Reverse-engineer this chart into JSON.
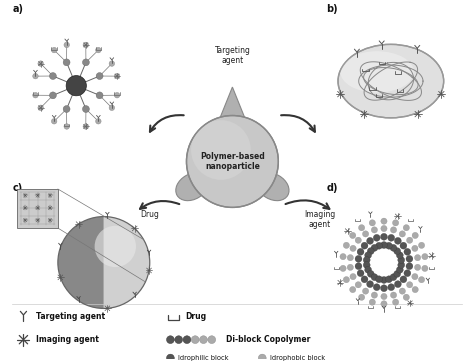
{
  "title": "",
  "background_color": "#ffffff",
  "fig_width": 4.74,
  "fig_height": 3.64,
  "dpi": 100,
  "labels": {
    "a": "a)",
    "b": "b)",
    "c": "c)",
    "d": "d)",
    "center": "Polymer-based\nnanoparticle",
    "targeting_agent_label": "Targeting\nagent",
    "drug_label": "Drug",
    "imaging_agent_label": "Imaging\nagent",
    "legend_targeting": "Targeting agent",
    "legend_imaging": "Imaging agent",
    "legend_drug": "Drug",
    "legend_diblock": "Di-block Copolymer",
    "legend_idrophilic": "Idrophilic block",
    "legend_idrophobic": "Idrophobic block"
  },
  "colors": {
    "gray_dark": "#555555",
    "gray_med": "#888888",
    "gray_light": "#bbbbbb",
    "gray_very_light": "#e8e8e8",
    "white": "#ffffff",
    "black": "#111111",
    "center_fill": "#c8c8c8",
    "center_edge": "#888888",
    "lobe_fill": "#b0b0b0",
    "arrow_color": "#333333",
    "dark_sphere": "#555555",
    "light_sphere": "#aaaaaa",
    "sphere_light": "#d8d8d8",
    "sphere_dark": "#909090"
  }
}
